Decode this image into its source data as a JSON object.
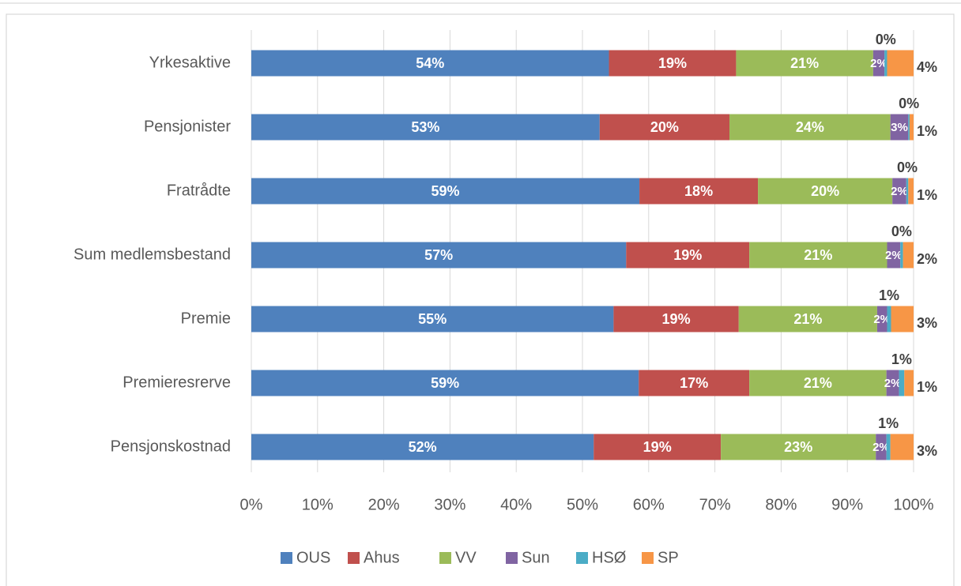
{
  "chart_data": {
    "type": "stacked_barh",
    "categories": [
      "Yrkesaktive",
      "Pensjonister",
      "Fratrådte",
      "Sum medlemsbestand",
      "Premie",
      "Premieresrerve",
      "Pensjonskostnad"
    ],
    "series": [
      {
        "name": "OUS",
        "color": "#4f81bd",
        "values": [
          54.0,
          52.6,
          58.6,
          56.6,
          54.7,
          58.5,
          51.7
        ],
        "value_labels": [
          "54%",
          "53%",
          "59%",
          "57%",
          "55%",
          "59%",
          "52%"
        ]
      },
      {
        "name": "Ahus",
        "color": "#c0504d",
        "values": [
          19.2,
          19.6,
          17.9,
          18.6,
          18.9,
          16.7,
          19.2
        ],
        "value_labels": [
          "19%",
          "20%",
          "18%",
          "19%",
          "19%",
          "17%",
          "19%"
        ]
      },
      {
        "name": "VV",
        "color": "#9bbb59",
        "values": [
          20.7,
          24.3,
          20.3,
          20.8,
          20.9,
          20.7,
          23.4
        ],
        "value_labels": [
          "21%",
          "24%",
          "20%",
          "21%",
          "21%",
          "21%",
          "23%"
        ]
      },
      {
        "name": "Sun",
        "color": "#8064a2",
        "values": [
          1.7,
          2.7,
          2.1,
          2.0,
          1.5,
          1.9,
          1.6
        ],
        "value_labels": [
          "2%",
          "3%",
          "2%",
          "2%",
          "2%",
          "2%",
          "2%"
        ]
      },
      {
        "name": "HSØ",
        "color": "#4bacc6",
        "values": [
          0.4,
          0.2,
          0.3,
          0.4,
          0.6,
          0.8,
          0.6
        ],
        "value_labels": [
          "0%",
          "0%",
          "0%",
          "0%",
          "1%",
          "1%",
          "1%"
        ]
      },
      {
        "name": "SP",
        "color": "#f79646",
        "values": [
          4.0,
          0.6,
          0.8,
          1.6,
          3.4,
          1.4,
          3.5
        ],
        "value_labels": [
          "4%",
          "1%",
          "1%",
          "2%",
          "3%",
          "1%",
          "3%"
        ]
      }
    ],
    "xlim": [
      0,
      100
    ],
    "xticks": [
      {
        "value": 0,
        "label": "0%"
      },
      {
        "value": 10,
        "label": "10%"
      },
      {
        "value": 20,
        "label": "20%"
      },
      {
        "value": 30,
        "label": "30%"
      },
      {
        "value": 40,
        "label": "40%"
      },
      {
        "value": 50,
        "label": "50%"
      },
      {
        "value": 60,
        "label": "60%"
      },
      {
        "value": 70,
        "label": "70%"
      },
      {
        "value": 80,
        "label": "80%"
      },
      {
        "value": 90,
        "label": "90%"
      },
      {
        "value": 100,
        "label": "100%"
      }
    ],
    "grid": true,
    "legend": "bottom"
  }
}
